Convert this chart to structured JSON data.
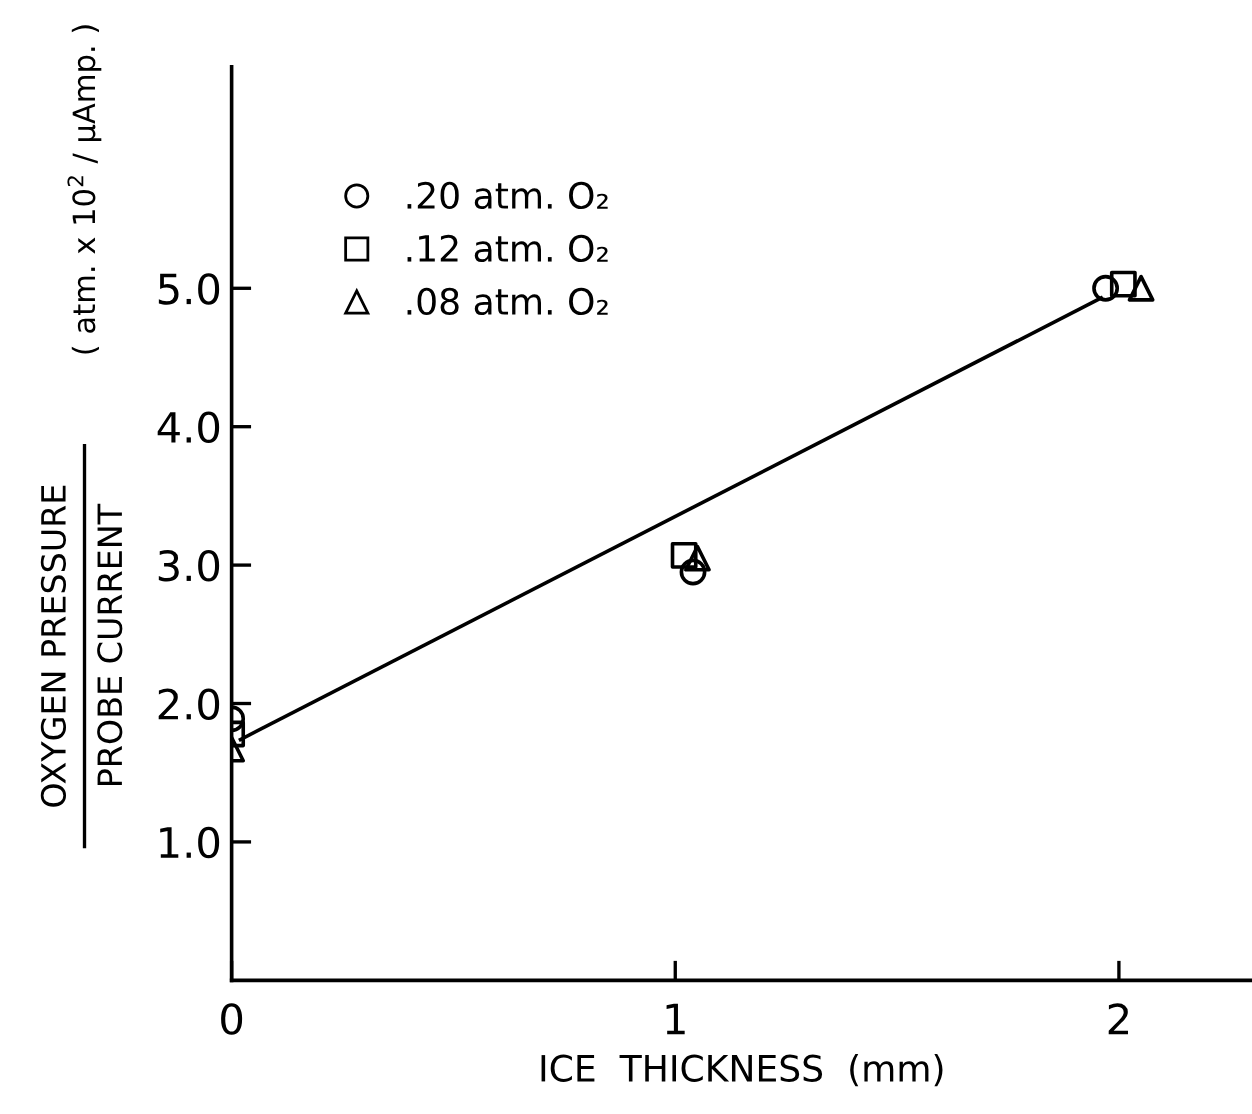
{
  "chart_data": {
    "type": "scatter",
    "xlabel": "ICE  THICKNESS  (mm)",
    "ylabel": "OXYGEN PRESSURE\nPROBE CURRENT",
    "annotations": [
      "( atm. x 10$^{2}$ / μAmp. )"
    ],
    "series": [
      {
        "name": ".20 atm. O₂",
        "color": "#000000",
        "marker": "circle",
        "x": [
          0,
          1.04,
          1.97
        ],
        "values": [
          1.89,
          2.95,
          5.0
        ]
      },
      {
        "name": ".12 atm. O₂",
        "color": "#000000",
        "marker": "square",
        "x": [
          0,
          1.02,
          2.01
        ],
        "values": [
          1.78,
          3.07,
          5.03
        ]
      },
      {
        "name": ".08 atm. O₂",
        "color": "#000000",
        "marker": "triangle",
        "x": [
          0,
          1.05,
          2.05
        ],
        "values": [
          1.67,
          3.05,
          5.0
        ]
      },
      {
        "type": "line",
        "color": "#000000",
        "marker": "none",
        "line_style": "solid",
        "x": [
          0.02,
          1.96
        ],
        "values": [
          1.74,
          4.93
        ]
      }
    ],
    "xlim": [
      0,
      2.3
    ],
    "ylim": [
      0,
      6.6
    ],
    "xticks": [
      0,
      1,
      2
    ],
    "yticks": [
      {
        "value": 1,
        "label": "1.0"
      },
      {
        "value": 2,
        "label": "2.0"
      },
      {
        "value": 3,
        "label": "3.0"
      },
      {
        "value": 4,
        "label": "4.0"
      },
      {
        "value": 5,
        "label": "5.0"
      }
    ],
    "grid": false,
    "legend": "top left"
  }
}
